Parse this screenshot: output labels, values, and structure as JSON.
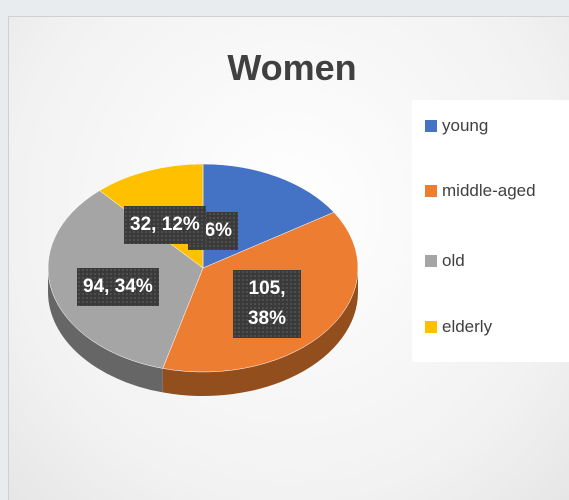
{
  "chart_data": {
    "type": "pie",
    "title": "Women",
    "categories": [
      "young",
      "middle-aged",
      "old",
      "elderly"
    ],
    "values": [
      44,
      105,
      94,
      32
    ],
    "value_labels": [
      "16%",
      "105, 38%",
      "94, 34%",
      "32, 12%"
    ],
    "colors": [
      "#4472c4",
      "#ed7d31",
      "#a5a5a5",
      "#ffc000"
    ],
    "legend": "right"
  }
}
